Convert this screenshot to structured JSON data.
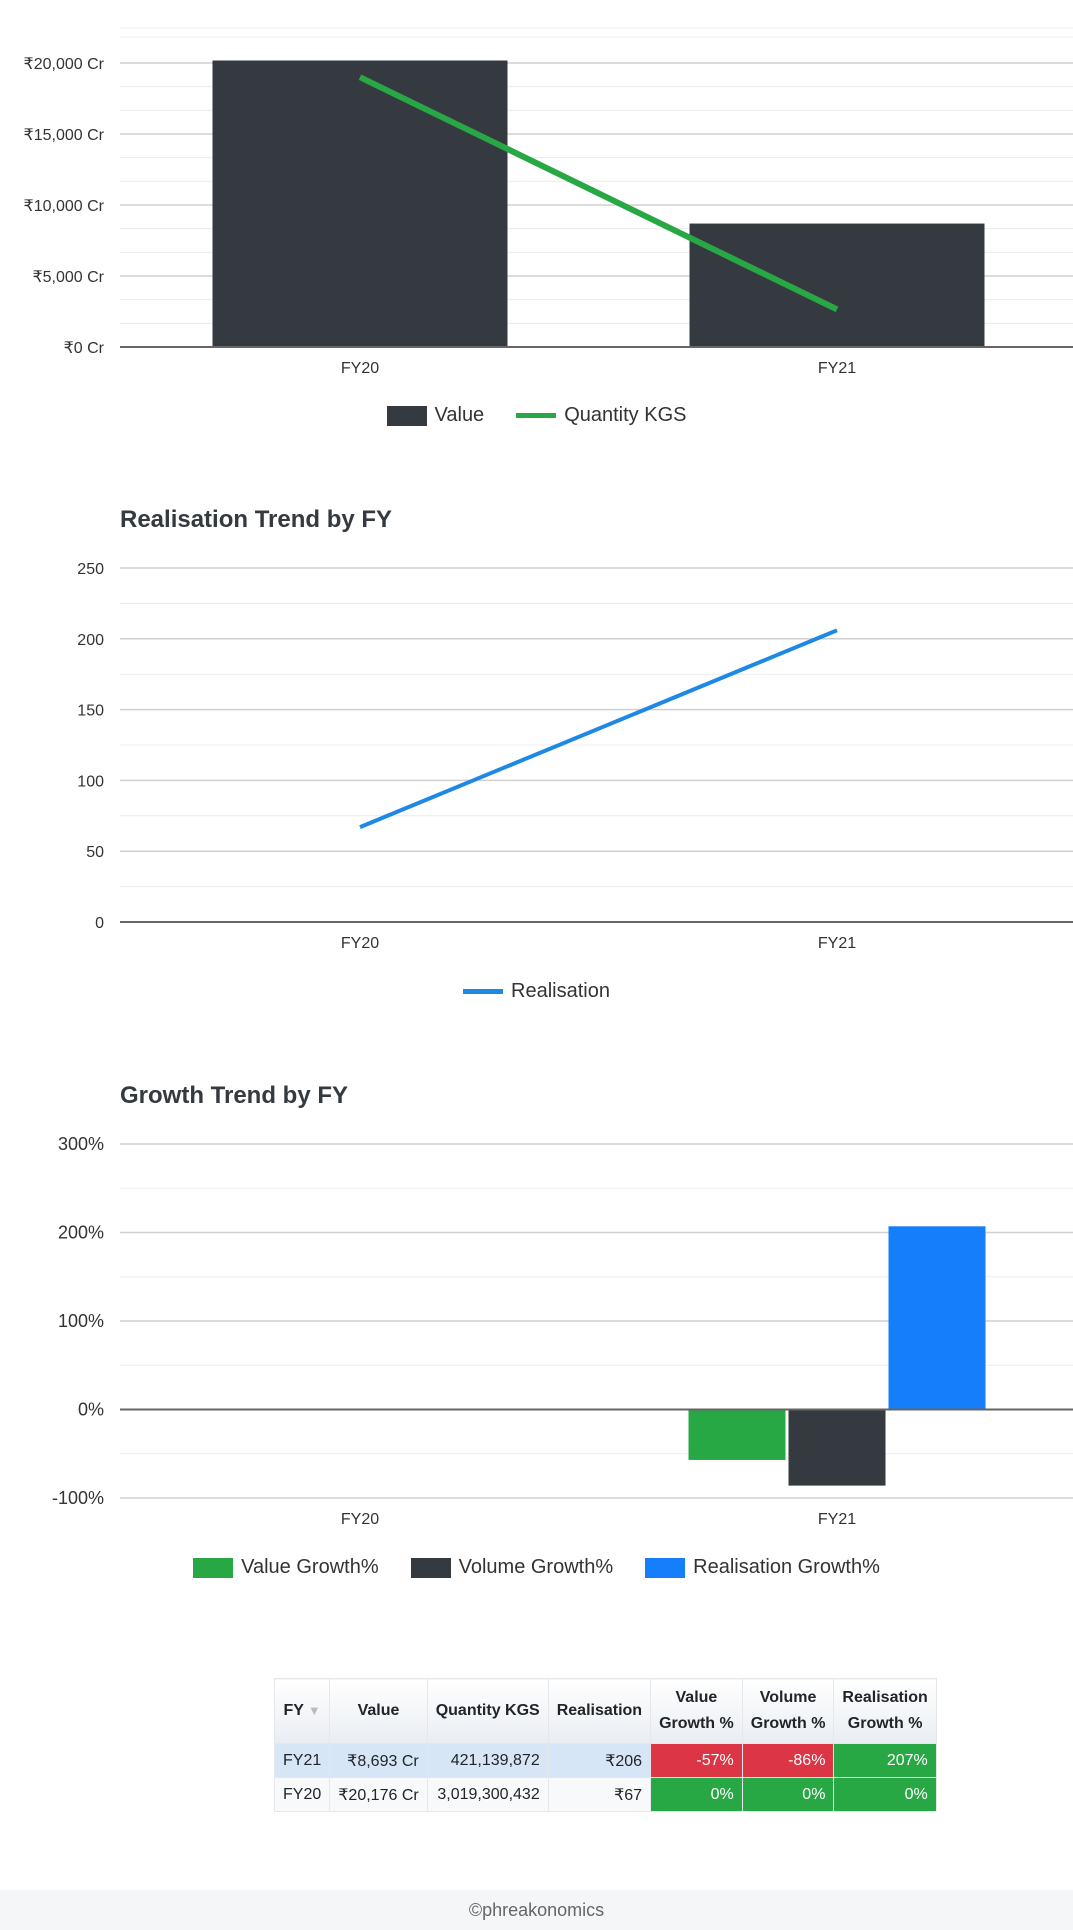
{
  "chart_data": [
    {
      "type": "bar",
      "title": "",
      "categories": [
        "FY20",
        "FY21"
      ],
      "yticks": [
        "₹0 Cr",
        "₹5,000 Cr",
        "₹10,000 Cr",
        "₹15,000 Cr",
        "₹20,000 Cr"
      ],
      "ylim": [
        0,
        20000
      ],
      "series": [
        {
          "name": "Value",
          "type": "bar",
          "values": [
            20176,
            8693
          ],
          "color": "#343a40"
        },
        {
          "name": "Quantity KGS",
          "type": "line",
          "values": [
            19000,
            2650
          ],
          "color": "#28a745"
        }
      ],
      "grid": true,
      "legend": "bottom"
    },
    {
      "type": "line",
      "title": "Realisation Trend by FY",
      "categories": [
        "FY20",
        "FY21"
      ],
      "yticks": [
        "0",
        "50",
        "100",
        "150",
        "200",
        "250"
      ],
      "ylim": [
        0,
        250
      ],
      "series": [
        {
          "name": "Realisation",
          "values": [
            67,
            206
          ],
          "color": "#1e88e5"
        }
      ],
      "grid": true,
      "legend": "bottom"
    },
    {
      "type": "bar",
      "title": "Growth Trend by FY",
      "categories": [
        "FY20",
        "FY21"
      ],
      "yticks": [
        "-100%",
        "0%",
        "100%",
        "200%",
        "300%"
      ],
      "ylim": [
        -100,
        300
      ],
      "series": [
        {
          "name": "Value Growth%",
          "values": [
            0,
            -57
          ],
          "color": "#28a745"
        },
        {
          "name": "Volume Growth%",
          "values": [
            0,
            -86
          ],
          "color": "#343a40"
        },
        {
          "name": "Realisation Growth%",
          "values": [
            0,
            207
          ],
          "color": "#157efb"
        }
      ],
      "grid": true,
      "legend": "bottom"
    }
  ],
  "table": {
    "headers": [
      {
        "label": "FY",
        "l1": "FY",
        "l2": ""
      },
      {
        "label": "Value",
        "l1": "Value",
        "l2": ""
      },
      {
        "label": "Quantity KGS",
        "l1": "Quantity KGS",
        "l2": ""
      },
      {
        "label": "Realisation",
        "l1": "Realisation",
        "l2": ""
      },
      {
        "label": "Value Growth %",
        "l1": "Value",
        "l2": "Growth %"
      },
      {
        "label": "Volume Growth %",
        "l1": "Volume",
        "l2": "Growth %"
      },
      {
        "label": "Realisation Growth %",
        "l1": "Realisation",
        "l2": "Growth %"
      }
    ],
    "sort_icon": "sort-down-icon",
    "rows": [
      {
        "fy": "FY21",
        "value": "₹8,693 Cr",
        "qty": "421,139,872",
        "realisation": "₹206",
        "value_growth": "-57%",
        "volume_growth": "-86%",
        "realisation_growth": "207%"
      },
      {
        "fy": "FY20",
        "value": "₹20,176 Cr",
        "qty": "3,019,300,432",
        "realisation": "₹67",
        "value_growth": "0%",
        "volume_growth": "0%",
        "realisation_growth": "0%"
      }
    ]
  },
  "footer": {
    "text": "©phreakonomics"
  }
}
